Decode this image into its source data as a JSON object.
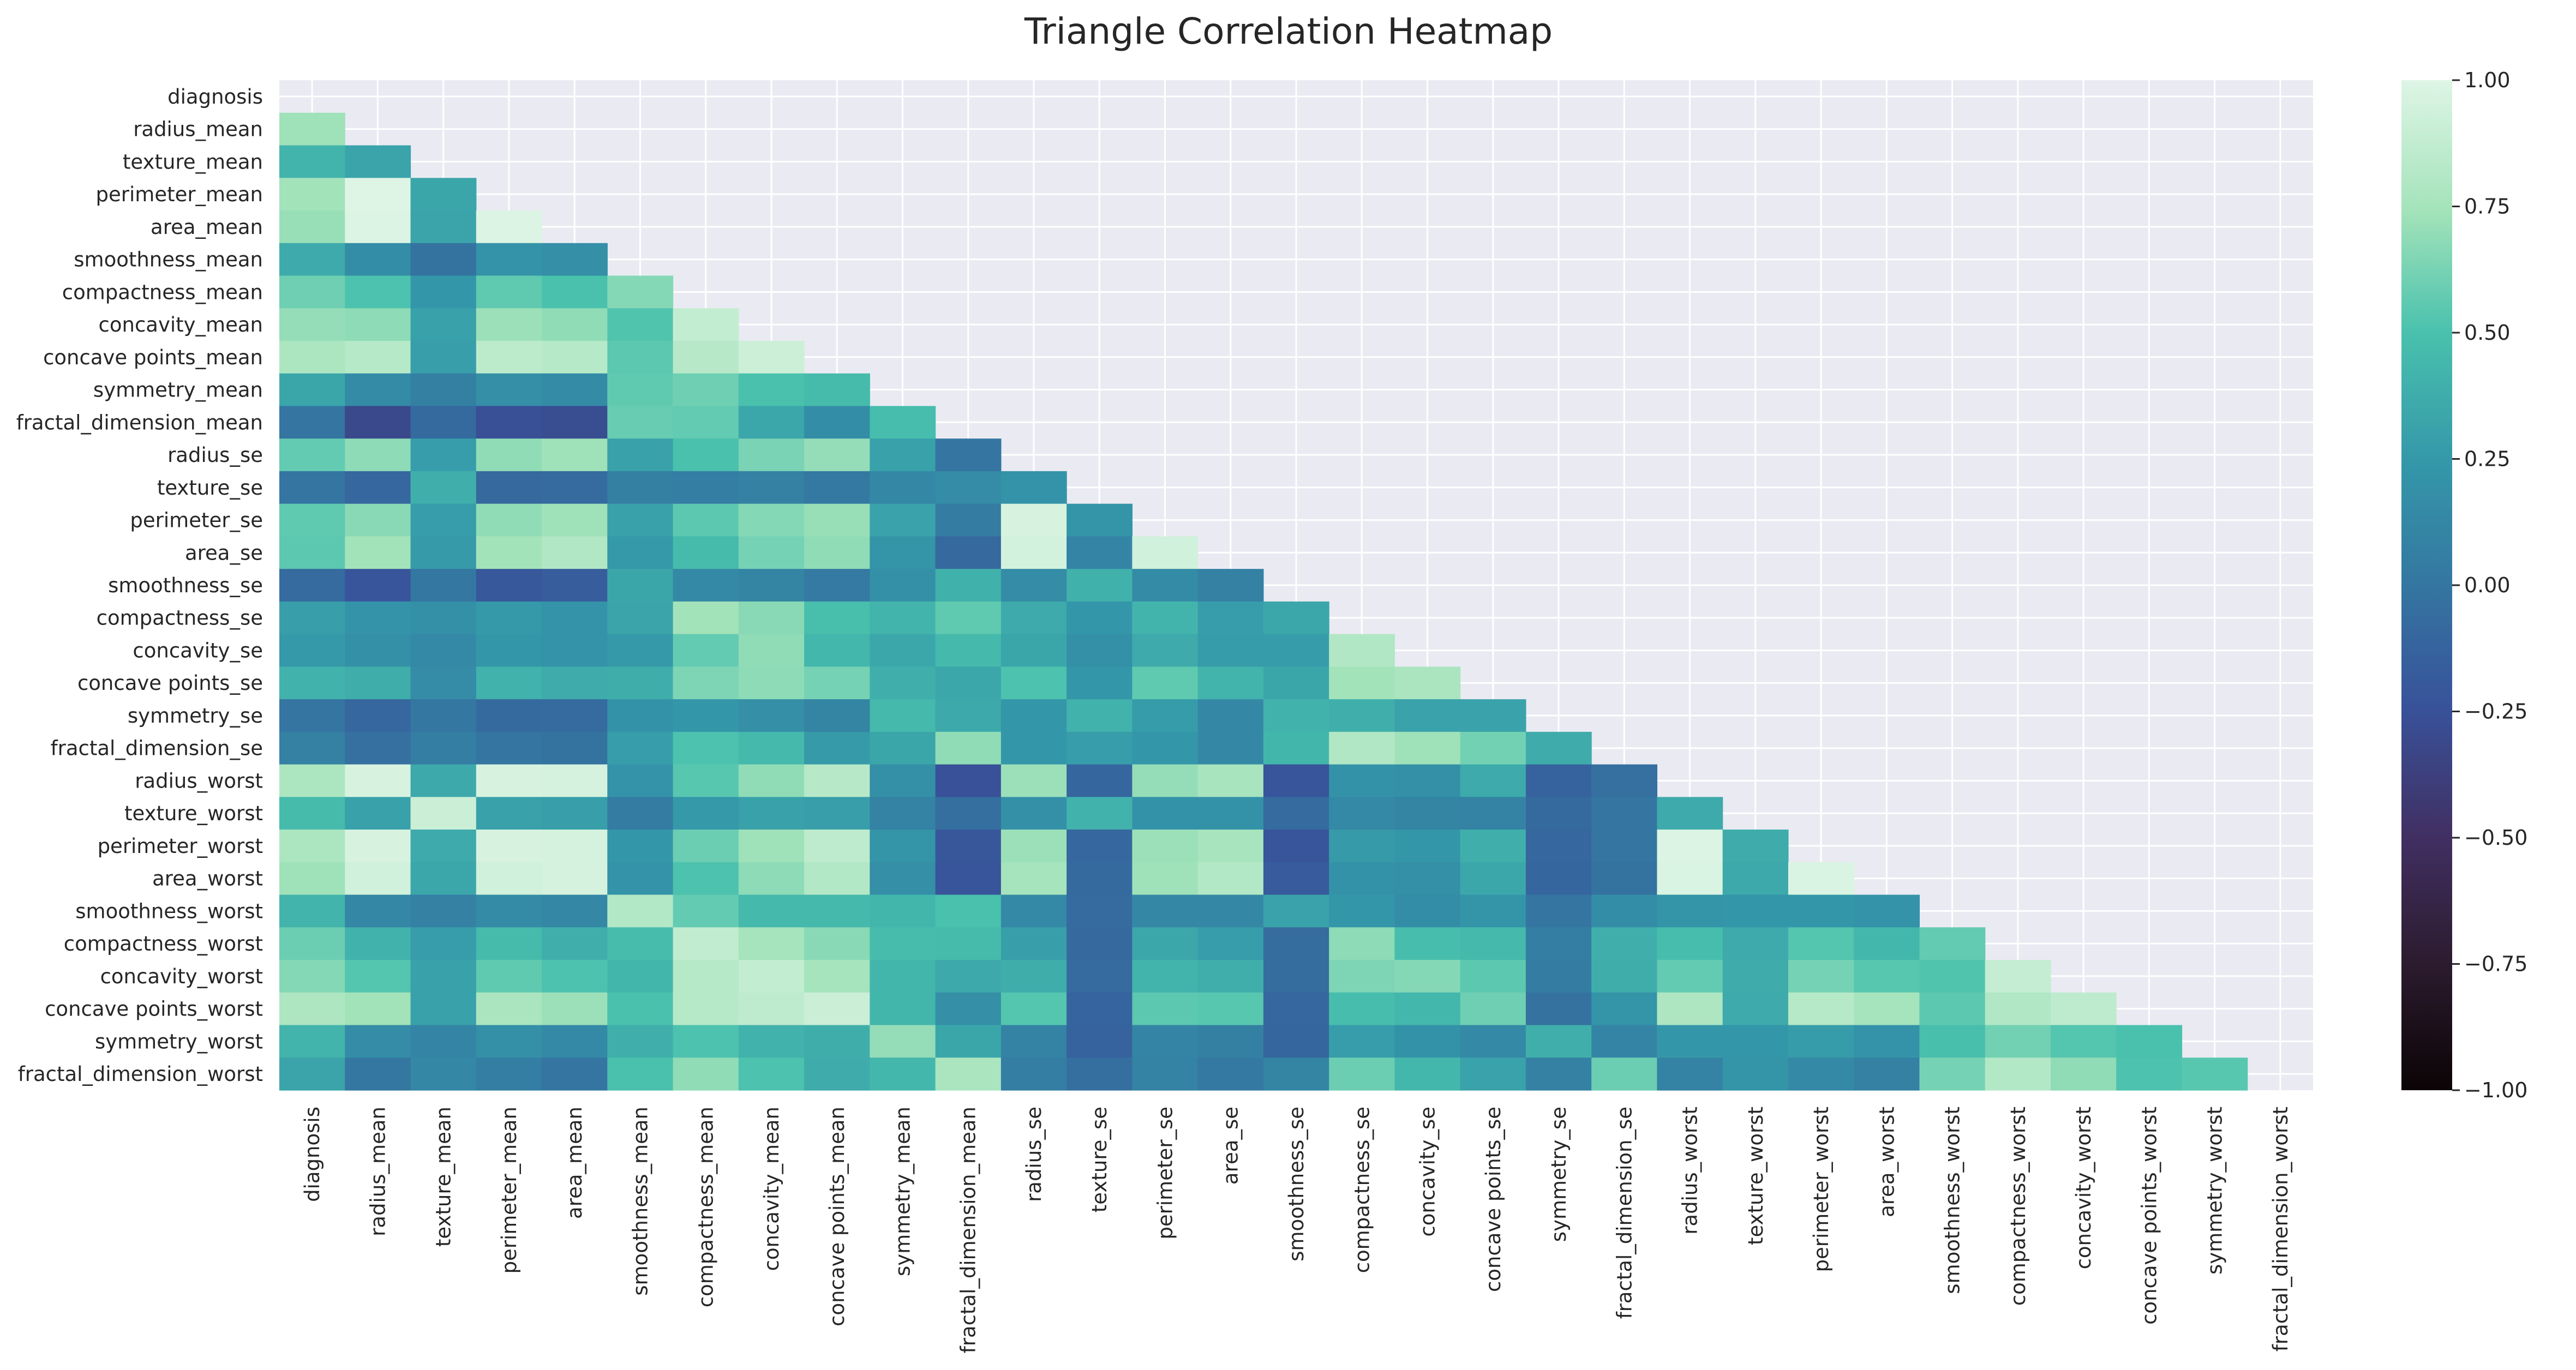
{
  "chart_data": {
    "type": "heatmap",
    "title": "Triangle Correlation Heatmap",
    "mask": "upper-triangle (diagonal hidden)",
    "colormap": "mako",
    "vmin": -1.0,
    "vmax": 1.0,
    "colorbar_ticks": [
      "-1.00",
      "-0.75",
      "-0.50",
      "-0.25",
      "0.00",
      "0.25",
      "0.50",
      "0.75",
      "1.00"
    ],
    "colorbar_tick_values": [
      -1.0,
      -0.75,
      -0.5,
      -0.25,
      0.0,
      0.25,
      0.5,
      0.75,
      1.0
    ],
    "grid": true,
    "variables": [
      "diagnosis",
      "radius_mean",
      "texture_mean",
      "perimeter_mean",
      "area_mean",
      "smoothness_mean",
      "compactness_mean",
      "concavity_mean",
      "concave points_mean",
      "symmetry_mean",
      "fractal_dimension_mean",
      "radius_se",
      "texture_se",
      "perimeter_se",
      "area_se",
      "smoothness_se",
      "compactness_se",
      "concavity_se",
      "concave points_se",
      "symmetry_se",
      "fractal_dimension_se",
      "radius_worst",
      "texture_worst",
      "perimeter_worst",
      "area_worst",
      "smoothness_worst",
      "compactness_worst",
      "concavity_worst",
      "concave points_worst",
      "symmetry_worst",
      "fractal_dimension_worst"
    ],
    "values": [
      [],
      [
        0.73
      ],
      [
        0.42,
        0.32
      ],
      [
        0.74,
        1.0,
        0.33
      ],
      [
        0.71,
        0.99,
        0.32,
        0.99
      ],
      [
        0.36,
        0.17,
        -0.02,
        0.21,
        0.18
      ],
      [
        0.6,
        0.51,
        0.24,
        0.56,
        0.5,
        0.66
      ],
      [
        0.7,
        0.68,
        0.3,
        0.72,
        0.69,
        0.52,
        0.88
      ],
      [
        0.78,
        0.82,
        0.29,
        0.85,
        0.82,
        0.55,
        0.83,
        0.92
      ],
      [
        0.33,
        0.15,
        0.07,
        0.18,
        0.15,
        0.56,
        0.6,
        0.5,
        0.46
      ],
      [
        -0.01,
        -0.31,
        -0.08,
        -0.26,
        -0.28,
        0.58,
        0.57,
        0.34,
        0.17,
        0.48
      ],
      [
        0.57,
        0.68,
        0.28,
        0.69,
        0.73,
        0.3,
        0.5,
        0.63,
        0.7,
        0.3,
        0.0
      ],
      [
        -0.01,
        -0.1,
        0.39,
        -0.09,
        -0.07,
        0.07,
        0.05,
        0.08,
        0.02,
        0.13,
        0.16,
        0.21
      ],
      [
        0.56,
        0.67,
        0.28,
        0.69,
        0.73,
        0.3,
        0.55,
        0.66,
        0.71,
        0.31,
        0.04,
        0.97,
        0.22
      ],
      [
        0.55,
        0.74,
        0.26,
        0.74,
        0.8,
        0.25,
        0.46,
        0.62,
        0.69,
        0.22,
        -0.09,
        0.95,
        0.11,
        0.94
      ],
      [
        -0.07,
        -0.22,
        0.01,
        -0.2,
        -0.17,
        0.33,
        0.14,
        0.1,
        0.03,
        0.19,
        0.4,
        0.16,
        0.4,
        0.15,
        0.08
      ],
      [
        0.29,
        0.21,
        0.19,
        0.25,
        0.21,
        0.32,
        0.74,
        0.67,
        0.49,
        0.42,
        0.56,
        0.36,
        0.23,
        0.42,
        0.28,
        0.34
      ],
      [
        0.25,
        0.19,
        0.14,
        0.23,
        0.21,
        0.25,
        0.57,
        0.69,
        0.44,
        0.34,
        0.45,
        0.33,
        0.19,
        0.36,
        0.27,
        0.27,
        0.8
      ],
      [
        0.41,
        0.38,
        0.16,
        0.41,
        0.37,
        0.38,
        0.64,
        0.68,
        0.62,
        0.39,
        0.34,
        0.51,
        0.23,
        0.56,
        0.42,
        0.33,
        0.74,
        0.77
      ],
      [
        -0.01,
        -0.1,
        0.01,
        -0.08,
        -0.07,
        0.2,
        0.23,
        0.18,
        0.1,
        0.45,
        0.35,
        0.24,
        0.41,
        0.27,
        0.13,
        0.41,
        0.39,
        0.31,
        0.31
      ],
      [
        0.08,
        -0.04,
        0.05,
        -0.01,
        -0.02,
        0.28,
        0.51,
        0.45,
        0.26,
        0.33,
        0.69,
        0.23,
        0.28,
        0.24,
        0.13,
        0.43,
        0.8,
        0.73,
        0.61,
        0.37
      ],
      [
        0.78,
        0.97,
        0.35,
        0.97,
        0.96,
        0.21,
        0.54,
        0.69,
        0.83,
        0.19,
        -0.25,
        0.72,
        -0.11,
        0.7,
        0.76,
        -0.23,
        0.2,
        0.19,
        0.36,
        -0.13,
        -0.04
      ],
      [
        0.46,
        0.3,
        0.91,
        0.3,
        0.29,
        0.04,
        0.25,
        0.3,
        0.29,
        0.09,
        -0.05,
        0.19,
        0.41,
        0.2,
        0.2,
        -0.07,
        0.14,
        0.1,
        0.09,
        -0.08,
        0.0,
        0.36
      ],
      [
        0.78,
        0.97,
        0.36,
        0.97,
        0.96,
        0.24,
        0.59,
        0.73,
        0.86,
        0.22,
        -0.21,
        0.72,
        -0.1,
        0.72,
        0.76,
        -0.22,
        0.26,
        0.23,
        0.39,
        -0.1,
        -0.0,
        0.99,
        0.37
      ],
      [
        0.73,
        0.94,
        0.34,
        0.94,
        0.96,
        0.21,
        0.51,
        0.68,
        0.81,
        0.18,
        -0.23,
        0.75,
        -0.08,
        0.73,
        0.81,
        -0.18,
        0.2,
        0.19,
        0.34,
        -0.11,
        -0.02,
        0.98,
        0.35,
        0.98
      ],
      [
        0.42,
        0.12,
        0.08,
        0.15,
        0.12,
        0.81,
        0.57,
        0.45,
        0.45,
        0.43,
        0.5,
        0.14,
        -0.07,
        0.13,
        0.13,
        0.31,
        0.23,
        0.17,
        0.22,
        -0.01,
        0.17,
        0.22,
        0.23,
        0.24,
        0.21
      ],
      [
        0.59,
        0.41,
        0.28,
        0.46,
        0.39,
        0.47,
        0.87,
        0.75,
        0.67,
        0.47,
        0.46,
        0.29,
        -0.09,
        0.34,
        0.28,
        -0.06,
        0.68,
        0.48,
        0.45,
        0.06,
        0.39,
        0.48,
        0.36,
        0.53,
        0.44,
        0.57
      ],
      [
        0.66,
        0.53,
        0.3,
        0.56,
        0.51,
        0.43,
        0.82,
        0.88,
        0.75,
        0.43,
        0.35,
        0.38,
        -0.07,
        0.42,
        0.39,
        -0.06,
        0.64,
        0.66,
        0.55,
        0.04,
        0.38,
        0.57,
        0.37,
        0.62,
        0.54,
        0.52,
        0.89
      ],
      [
        0.79,
        0.74,
        0.3,
        0.77,
        0.72,
        0.5,
        0.82,
        0.86,
        0.91,
        0.43,
        0.18,
        0.53,
        -0.12,
        0.55,
        0.54,
        -0.1,
        0.48,
        0.44,
        0.6,
        -0.03,
        0.22,
        0.79,
        0.36,
        0.82,
        0.75,
        0.55,
        0.8,
        0.86
      ],
      [
        0.42,
        0.16,
        0.11,
        0.19,
        0.14,
        0.39,
        0.51,
        0.41,
        0.38,
        0.7,
        0.33,
        0.09,
        -0.13,
        0.11,
        0.07,
        -0.11,
        0.28,
        0.2,
        0.14,
        0.39,
        0.11,
        0.24,
        0.23,
        0.27,
        0.21,
        0.49,
        0.61,
        0.53,
        0.5
      ],
      [
        0.32,
        0.01,
        0.12,
        0.05,
        0.0,
        0.5,
        0.69,
        0.51,
        0.37,
        0.44,
        0.77,
        0.05,
        -0.05,
        0.09,
        0.02,
        0.1,
        0.59,
        0.44,
        0.31,
        0.08,
        0.59,
        0.09,
        0.22,
        0.14,
        0.08,
        0.62,
        0.81,
        0.69,
        0.51,
        0.54
      ]
    ]
  }
}
